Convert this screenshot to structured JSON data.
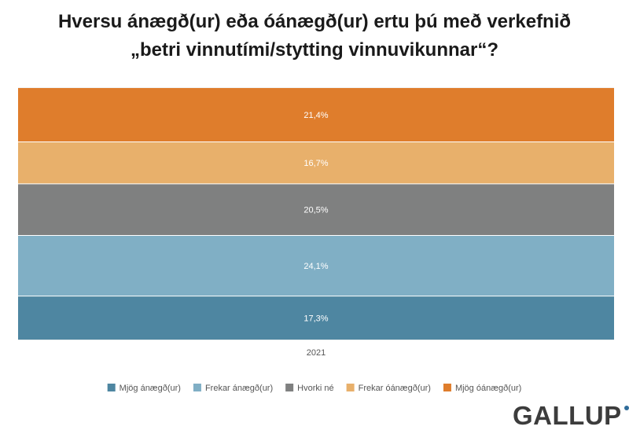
{
  "title_line1": "Hversu ánægð(ur) eða óánægð(ur) ertu þú með verkefnið",
  "title_line2": "„betri vinnutími/stytting vinnuvikunnar“?",
  "brand": "GALLUP",
  "chart_data": {
    "type": "bar",
    "stacked": true,
    "categories": [
      "2021"
    ],
    "series": [
      {
        "name": "Mjög ánægð(ur)",
        "values": [
          17.3
        ],
        "label": "17,3%",
        "color": "#4e86a1"
      },
      {
        "name": "Frekar ánægð(ur)",
        "values": [
          24.1
        ],
        "label": "24,1%",
        "color": "#80afc5"
      },
      {
        "name": "Hvorki né",
        "values": [
          20.5
        ],
        "label": "20,5%",
        "color": "#7f8080"
      },
      {
        "name": "Frekar óánægð(ur)",
        "values": [
          16.7
        ],
        "label": "16,7%",
        "color": "#e8b06b"
      },
      {
        "name": "Mjög óánægð(ur)",
        "values": [
          21.4
        ],
        "label": "21,4%",
        "color": "#df7d2c"
      }
    ],
    "legend_position": "bottom",
    "grid": true
  }
}
